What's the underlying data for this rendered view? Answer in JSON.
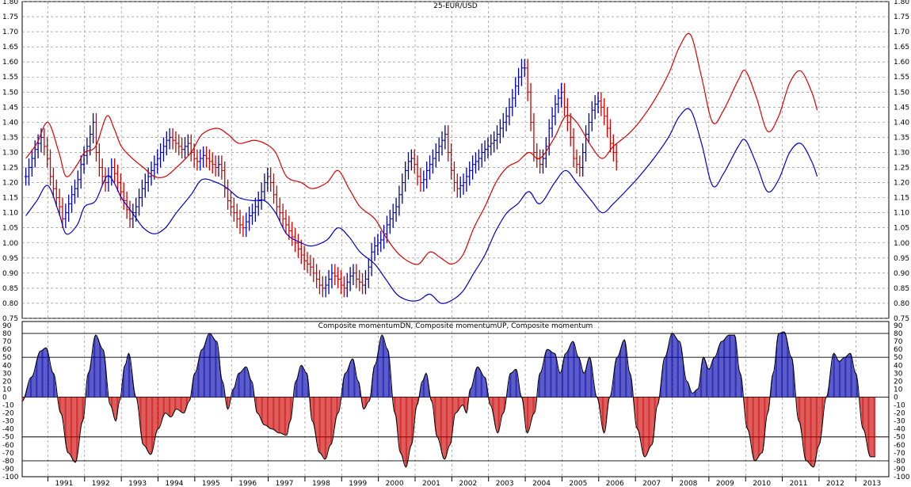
{
  "chart_data": [
    {
      "type": "bar",
      "subtype": "ohlc-bars",
      "title": "25-EUR/USD",
      "ylim": [
        0.75,
        1.8
      ],
      "y_ticks": [
        0.75,
        0.8,
        0.85,
        0.9,
        0.95,
        1.0,
        1.05,
        1.1,
        1.15,
        1.2,
        1.25,
        1.3,
        1.35,
        1.4,
        1.45,
        1.5,
        1.55,
        1.6,
        1.65,
        1.7,
        1.75,
        1.8
      ],
      "x_year_labels": [
        "1991",
        "1992",
        "1993",
        "1994",
        "1995",
        "1996",
        "1997",
        "1998",
        "1999",
        "2000",
        "2001",
        "2002",
        "2003",
        "2004",
        "2005",
        "2006",
        "2007",
        "2008",
        "2009",
        "2010",
        "2011",
        "2012",
        "2013"
      ],
      "xlim": [
        1990.3,
        2013.9
      ],
      "grid": true,
      "colors": {
        "up_bar": "#0000aa",
        "down_bar": "#cc0000",
        "upper_band": "#dd0000",
        "lower_band": "#0000cc"
      },
      "price_close_monthly": [
        1.22,
        1.25,
        1.28,
        1.31,
        1.33,
        1.35,
        1.32,
        1.28,
        1.22,
        1.18,
        1.15,
        1.12,
        1.08,
        1.1,
        1.13,
        1.16,
        1.18,
        1.21,
        1.26,
        1.29,
        1.32,
        1.36,
        1.4,
        1.3,
        1.25,
        1.22,
        1.2,
        1.22,
        1.25,
        1.23,
        1.2,
        1.17,
        1.14,
        1.11,
        1.08,
        1.1,
        1.12,
        1.15,
        1.18,
        1.2,
        1.22,
        1.24,
        1.26,
        1.28,
        1.3,
        1.32,
        1.34,
        1.35,
        1.34,
        1.33,
        1.32,
        1.31,
        1.32,
        1.33,
        1.3,
        1.28,
        1.27,
        1.28,
        1.29,
        1.28,
        1.27,
        1.26,
        1.25,
        1.26,
        1.24,
        1.18,
        1.14,
        1.12,
        1.1,
        1.08,
        1.06,
        1.05,
        1.07,
        1.09,
        1.1,
        1.12,
        1.14,
        1.17,
        1.2,
        1.22,
        1.2,
        1.16,
        1.12,
        1.1,
        1.08,
        1.06,
        1.04,
        1.02,
        1.0,
        0.98,
        0.96,
        0.94,
        0.93,
        0.92,
        0.9,
        0.88,
        0.86,
        0.85,
        0.86,
        0.88,
        0.9,
        0.89,
        0.88,
        0.86,
        0.85,
        0.87,
        0.89,
        0.9,
        0.88,
        0.87,
        0.86,
        0.88,
        0.92,
        0.97,
        0.99,
        1.0,
        1.01,
        1.03,
        1.06,
        1.08,
        1.1,
        1.12,
        1.16,
        1.2,
        1.24,
        1.27,
        1.28,
        1.26,
        1.22,
        1.2,
        1.21,
        1.24,
        1.26,
        1.28,
        1.3,
        1.32,
        1.34,
        1.36,
        1.3,
        1.24,
        1.2,
        1.18,
        1.19,
        1.2,
        1.22,
        1.24,
        1.26,
        1.27,
        1.28,
        1.3,
        1.31,
        1.32,
        1.33,
        1.34,
        1.36,
        1.38,
        1.4,
        1.42,
        1.45,
        1.48,
        1.52,
        1.55,
        1.58,
        1.58,
        1.5,
        1.4,
        1.3,
        1.28,
        1.26,
        1.28,
        1.32,
        1.38,
        1.42,
        1.46,
        1.48,
        1.5,
        1.45,
        1.4,
        1.35,
        1.28,
        1.26,
        1.25,
        1.3,
        1.36,
        1.4,
        1.44,
        1.46,
        1.47,
        1.45,
        1.42,
        1.38,
        1.33,
        1.3,
        1.27
      ],
      "upper_band": [
        [
          1990.4,
          1.28
        ],
        [
          1990.7,
          1.33
        ],
        [
          1991.0,
          1.4
        ],
        [
          1991.3,
          1.3
        ],
        [
          1991.5,
          1.22
        ],
        [
          1991.8,
          1.26
        ],
        [
          1992.0,
          1.3
        ],
        [
          1992.3,
          1.32
        ],
        [
          1992.6,
          1.42
        ],
        [
          1992.8,
          1.38
        ],
        [
          1993.0,
          1.32
        ],
        [
          1993.3,
          1.28
        ],
        [
          1993.6,
          1.25
        ],
        [
          1993.9,
          1.22
        ],
        [
          1994.2,
          1.22
        ],
        [
          1994.5,
          1.25
        ],
        [
          1994.9,
          1.3
        ],
        [
          1995.2,
          1.36
        ],
        [
          1995.6,
          1.38
        ],
        [
          1995.9,
          1.36
        ],
        [
          1996.2,
          1.33
        ],
        [
          1996.6,
          1.34
        ],
        [
          1996.9,
          1.33
        ],
        [
          1997.2,
          1.3
        ],
        [
          1997.5,
          1.22
        ],
        [
          1997.9,
          1.2
        ],
        [
          1998.2,
          1.18
        ],
        [
          1998.6,
          1.2
        ],
        [
          1998.9,
          1.24
        ],
        [
          1999.2,
          1.18
        ],
        [
          1999.5,
          1.12
        ],
        [
          1999.9,
          1.08
        ],
        [
          2000.2,
          1.02
        ],
        [
          2000.5,
          0.97
        ],
        [
          2000.8,
          0.94
        ],
        [
          2001.1,
          0.93
        ],
        [
          2001.4,
          0.97
        ],
        [
          2001.7,
          0.95
        ],
        [
          2002.0,
          0.93
        ],
        [
          2002.3,
          0.96
        ],
        [
          2002.6,
          1.05
        ],
        [
          2002.9,
          1.12
        ],
        [
          2003.2,
          1.2
        ],
        [
          2003.5,
          1.25
        ],
        [
          2003.8,
          1.27
        ],
        [
          2004.1,
          1.3
        ],
        [
          2004.4,
          1.28
        ],
        [
          2004.8,
          1.35
        ],
        [
          2005.1,
          1.42
        ],
        [
          2005.4,
          1.4
        ],
        [
          2005.8,
          1.32
        ],
        [
          2006.1,
          1.28
        ],
        [
          2006.4,
          1.32
        ],
        [
          2006.8,
          1.36
        ],
        [
          2007.1,
          1.4
        ],
        [
          2007.5,
          1.47
        ],
        [
          2007.9,
          1.56
        ],
        [
          2008.2,
          1.65
        ],
        [
          2008.5,
          1.69
        ],
        [
          2008.8,
          1.55
        ],
        [
          2009.1,
          1.4
        ],
        [
          2009.4,
          1.44
        ],
        [
          2009.8,
          1.54
        ],
        [
          2010.0,
          1.57
        ],
        [
          2010.3,
          1.48
        ],
        [
          2010.6,
          1.37
        ],
        [
          2010.9,
          1.42
        ],
        [
          2011.2,
          1.53
        ],
        [
          2011.5,
          1.57
        ],
        [
          2011.8,
          1.5
        ],
        [
          2011.95,
          1.44
        ]
      ],
      "lower_band": [
        [
          1990.4,
          1.09
        ],
        [
          1990.7,
          1.14
        ],
        [
          1991.0,
          1.19
        ],
        [
          1991.3,
          1.1
        ],
        [
          1991.5,
          1.03
        ],
        [
          1991.8,
          1.06
        ],
        [
          1992.0,
          1.12
        ],
        [
          1992.3,
          1.14
        ],
        [
          1992.6,
          1.22
        ],
        [
          1992.8,
          1.2
        ],
        [
          1993.0,
          1.15
        ],
        [
          1993.3,
          1.1
        ],
        [
          1993.6,
          1.05
        ],
        [
          1993.9,
          1.03
        ],
        [
          1994.2,
          1.05
        ],
        [
          1994.5,
          1.1
        ],
        [
          1994.9,
          1.16
        ],
        [
          1995.2,
          1.21
        ],
        [
          1995.6,
          1.2
        ],
        [
          1995.9,
          1.18
        ],
        [
          1996.2,
          1.15
        ],
        [
          1996.6,
          1.14
        ],
        [
          1996.9,
          1.14
        ],
        [
          1997.2,
          1.1
        ],
        [
          1997.5,
          1.03
        ],
        [
          1997.9,
          1.0
        ],
        [
          1998.2,
          0.99
        ],
        [
          1998.6,
          1.01
        ],
        [
          1998.9,
          1.05
        ],
        [
          1999.2,
          1.02
        ],
        [
          1999.5,
          0.97
        ],
        [
          1999.9,
          0.93
        ],
        [
          2000.2,
          0.88
        ],
        [
          2000.5,
          0.83
        ],
        [
          2000.8,
          0.81
        ],
        [
          2001.1,
          0.81
        ],
        [
          2001.4,
          0.83
        ],
        [
          2001.7,
          0.8
        ],
        [
          2002.0,
          0.81
        ],
        [
          2002.3,
          0.84
        ],
        [
          2002.6,
          0.9
        ],
        [
          2002.9,
          0.96
        ],
        [
          2003.2,
          1.04
        ],
        [
          2003.5,
          1.1
        ],
        [
          2003.8,
          1.13
        ],
        [
          2004.1,
          1.17
        ],
        [
          2004.4,
          1.13
        ],
        [
          2004.8,
          1.2
        ],
        [
          2005.1,
          1.24
        ],
        [
          2005.4,
          1.2
        ],
        [
          2005.8,
          1.14
        ],
        [
          2006.1,
          1.1
        ],
        [
          2006.4,
          1.13
        ],
        [
          2006.8,
          1.18
        ],
        [
          2007.1,
          1.22
        ],
        [
          2007.5,
          1.28
        ],
        [
          2007.9,
          1.35
        ],
        [
          2008.2,
          1.42
        ],
        [
          2008.5,
          1.44
        ],
        [
          2008.8,
          1.33
        ],
        [
          2009.1,
          1.19
        ],
        [
          2009.4,
          1.23
        ],
        [
          2009.8,
          1.32
        ],
        [
          2010.0,
          1.34
        ],
        [
          2010.3,
          1.26
        ],
        [
          2010.6,
          1.17
        ],
        [
          2010.9,
          1.21
        ],
        [
          2011.2,
          1.3
        ],
        [
          2011.5,
          1.33
        ],
        [
          2011.8,
          1.27
        ],
        [
          2011.95,
          1.22
        ]
      ]
    },
    {
      "type": "bar",
      "subtype": "momentum-histogram",
      "title": "Composite momentumDN, Composite momentumUP, Composite momentum",
      "ylim": [
        -100,
        95
      ],
      "y_ticks": [
        90,
        80,
        70,
        60,
        50,
        40,
        30,
        20,
        10,
        0,
        -10,
        -20,
        -30,
        -40,
        -50,
        -60,
        -70,
        -80,
        -90,
        -100
      ],
      "reference_lines": [
        80,
        50,
        0,
        -50,
        -80
      ],
      "xlim": [
        1990.3,
        2013.9
      ],
      "colors": {
        "positive": "#0000aa",
        "negative": "#cc0000",
        "line": "#000000"
      },
      "momentum_series": [
        [
          1990.3,
          -5
        ],
        [
          1990.55,
          25
        ],
        [
          1990.8,
          58
        ],
        [
          1990.95,
          62
        ],
        [
          1991.15,
          30
        ],
        [
          1991.35,
          -20
        ],
        [
          1991.55,
          -70
        ],
        [
          1991.75,
          -82
        ],
        [
          1991.95,
          -30
        ],
        [
          1992.1,
          30
        ],
        [
          1992.3,
          78
        ],
        [
          1992.5,
          60
        ],
        [
          1992.7,
          -10
        ],
        [
          1992.85,
          -30
        ],
        [
          1992.95,
          -5
        ],
        [
          1993.1,
          40
        ],
        [
          1993.2,
          55
        ],
        [
          1993.4,
          0
        ],
        [
          1993.6,
          -60
        ],
        [
          1993.8,
          -72
        ],
        [
          1994.0,
          -40
        ],
        [
          1994.2,
          -20
        ],
        [
          1994.35,
          -25
        ],
        [
          1994.5,
          -15
        ],
        [
          1994.7,
          -20
        ],
        [
          1994.85,
          -5
        ],
        [
          1995.0,
          30
        ],
        [
          1995.2,
          60
        ],
        [
          1995.4,
          80
        ],
        [
          1995.6,
          70
        ],
        [
          1995.75,
          20
        ],
        [
          1995.9,
          -15
        ],
        [
          1996.05,
          10
        ],
        [
          1996.2,
          30
        ],
        [
          1996.4,
          38
        ],
        [
          1996.55,
          20
        ],
        [
          1996.7,
          -20
        ],
        [
          1996.9,
          -35
        ],
        [
          1997.1,
          -40
        ],
        [
          1997.3,
          -45
        ],
        [
          1997.5,
          -48
        ],
        [
          1997.6,
          -30
        ],
        [
          1997.75,
          20
        ],
        [
          1997.9,
          40
        ],
        [
          1998.05,
          30
        ],
        [
          1998.2,
          -30
        ],
        [
          1998.4,
          -70
        ],
        [
          1998.55,
          -78
        ],
        [
          1998.7,
          -60
        ],
        [
          1998.9,
          -20
        ],
        [
          1999.1,
          30
        ],
        [
          1999.3,
          48
        ],
        [
          1999.45,
          20
        ],
        [
          1999.6,
          -15
        ],
        [
          1999.75,
          -5
        ],
        [
          1999.9,
          40
        ],
        [
          2000.1,
          78
        ],
        [
          2000.25,
          60
        ],
        [
          2000.45,
          -20
        ],
        [
          2000.6,
          -70
        ],
        [
          2000.75,
          -88
        ],
        [
          2000.9,
          -60
        ],
        [
          2001.05,
          -10
        ],
        [
          2001.2,
          20
        ],
        [
          2001.3,
          30
        ],
        [
          2001.45,
          -5
        ],
        [
          2001.6,
          -50
        ],
        [
          2001.8,
          -78
        ],
        [
          2001.95,
          -60
        ],
        [
          2002.1,
          -20
        ],
        [
          2002.3,
          -10
        ],
        [
          2002.4,
          -20
        ],
        [
          2002.5,
          10
        ],
        [
          2002.7,
          38
        ],
        [
          2002.9,
          25
        ],
        [
          2003.05,
          -10
        ],
        [
          2003.25,
          -45
        ],
        [
          2003.4,
          -20
        ],
        [
          2003.6,
          30
        ],
        [
          2003.75,
          35
        ],
        [
          2003.9,
          0
        ],
        [
          2004.05,
          -45
        ],
        [
          2004.25,
          -20
        ],
        [
          2004.4,
          30
        ],
        [
          2004.6,
          60
        ],
        [
          2004.8,
          55
        ],
        [
          2004.95,
          30
        ],
        [
          2005.1,
          55
        ],
        [
          2005.3,
          70
        ],
        [
          2005.45,
          50
        ],
        [
          2005.6,
          30
        ],
        [
          2005.75,
          50
        ],
        [
          2005.95,
          0
        ],
        [
          2006.15,
          -45
        ],
        [
          2006.3,
          0
        ],
        [
          2006.5,
          50
        ],
        [
          2006.7,
          72
        ],
        [
          2006.85,
          30
        ],
        [
          2007.05,
          -40
        ],
        [
          2007.25,
          -75
        ],
        [
          2007.45,
          -60
        ],
        [
          2007.6,
          -10
        ],
        [
          2007.8,
          50
        ],
        [
          2008.0,
          80
        ],
        [
          2008.2,
          70
        ],
        [
          2008.4,
          20
        ],
        [
          2008.55,
          5
        ],
        [
          2008.7,
          10
        ],
        [
          2008.85,
          50
        ],
        [
          2009.0,
          35
        ],
        [
          2009.15,
          50
        ],
        [
          2009.35,
          70
        ],
        [
          2009.55,
          78
        ],
        [
          2009.7,
          78
        ],
        [
          2009.85,
          30
        ],
        [
          2010.05,
          -40
        ],
        [
          2010.25,
          -80
        ],
        [
          2010.45,
          -70
        ],
        [
          2010.6,
          -20
        ],
        [
          2010.75,
          30
        ],
        [
          2010.9,
          80
        ],
        [
          2011.05,
          82
        ],
        [
          2011.25,
          50
        ],
        [
          2011.45,
          -30
        ],
        [
          2011.65,
          -80
        ],
        [
          2011.85,
          -88
        ],
        [
          2012.0,
          -60
        ],
        [
          2012.2,
          0
        ],
        [
          2012.4,
          55
        ],
        [
          2012.55,
          45
        ],
        [
          2012.7,
          50
        ],
        [
          2012.85,
          55
        ],
        [
          2013.0,
          30
        ],
        [
          2013.2,
          -40
        ],
        [
          2013.4,
          -75
        ],
        [
          2013.55,
          -75
        ]
      ]
    }
  ]
}
